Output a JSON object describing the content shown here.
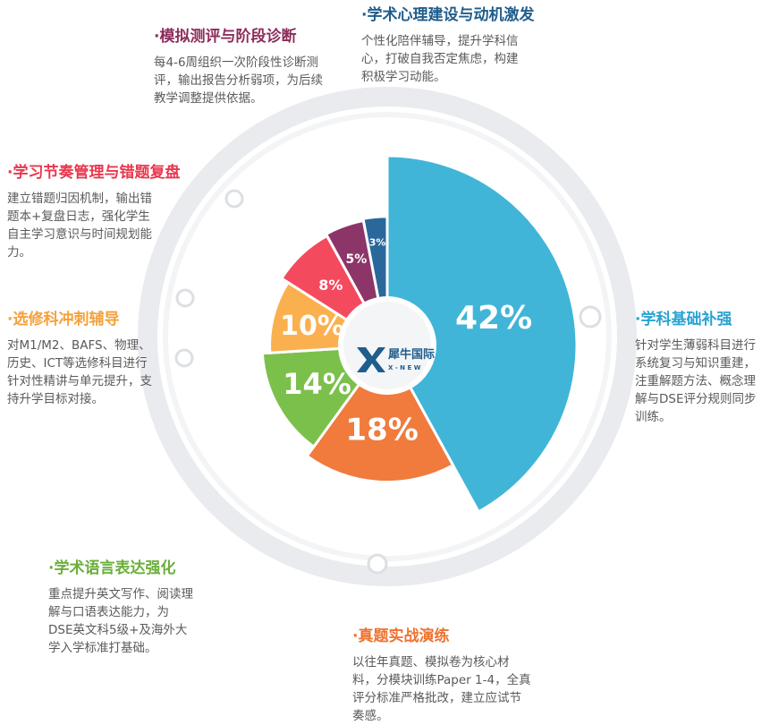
{
  "chart_data": {
    "type": "pie",
    "start_direction": "top",
    "order": "clockwise",
    "categories": [
      "学科基础补强",
      "真题实战演练",
      "学术语言表达强化",
      "选修科冲刺辅导",
      "学习节奏管理与错题复盘",
      "模拟测评与阶段诊断",
      "学术心理建设与动机激发"
    ],
    "values": [
      42,
      18,
      14,
      10,
      8,
      5,
      3
    ],
    "labels": [
      "42%",
      "18%",
      "14%",
      "10%",
      "8%",
      "5%",
      "3%"
    ],
    "colors": [
      "#40b5d8",
      "#f07b3d",
      "#7cc04c",
      "#fbb04f",
      "#f44a5e",
      "#8c3568",
      "#2a689b"
    ],
    "radii_relative": [
      1.0,
      0.72,
      0.66,
      0.62,
      0.66,
      0.67,
      0.68
    ]
  },
  "center_logo": {
    "brand": "犀牛国际",
    "brand_en": "X - N E W"
  },
  "annotations": [
    {
      "title": "·学术心理建设与动机激发",
      "title_color": "#1f5d8c",
      "desc": "个性化陪伴辅导，提升学科信心，打破自我否定焦虑，构建积极学习动能。"
    },
    {
      "title": "·模拟测评与阶段诊断",
      "title_color": "#8c2d5c",
      "desc": "每4-6周组织一次阶段性诊断测评，输出报告分析弱项，为后续教学调整提供依据。"
    },
    {
      "title": "·学习节奏管理与错题复盘",
      "title_color": "#e8384e",
      "desc": "建立错题归因机制，输出错题本+复盘日志，强化学生自主学习意识与时间规划能力。"
    },
    {
      "title": "·选修科冲刺辅导",
      "title_color": "#f5a03a",
      "desc": "对M1/M2、BAFS、物理、历史、ICT等选修科目进行针对性精讲与单元提升，支持升学目标对接。"
    },
    {
      "title": "·学科基础补强",
      "title_color": "#2aa3cf",
      "desc": "针对学生薄弱科目进行系统复习与知识重建，注重解题方法、概念理解与DSE评分规则同步训练。"
    },
    {
      "title": "·学术语言表达强化",
      "title_color": "#6aaf3a",
      "desc": "重点提升英文写作、阅读理解与口语表达能力，为DSE英文科5级+及海外大学入学标准打基础。"
    },
    {
      "title": "·真题实战演练",
      "title_color": "#ee7230",
      "desc": "以往年真题、模拟卷为核心材料，分模块训练Paper 1-4，全真评分标准严格批改，建立应试节奏感。"
    }
  ]
}
